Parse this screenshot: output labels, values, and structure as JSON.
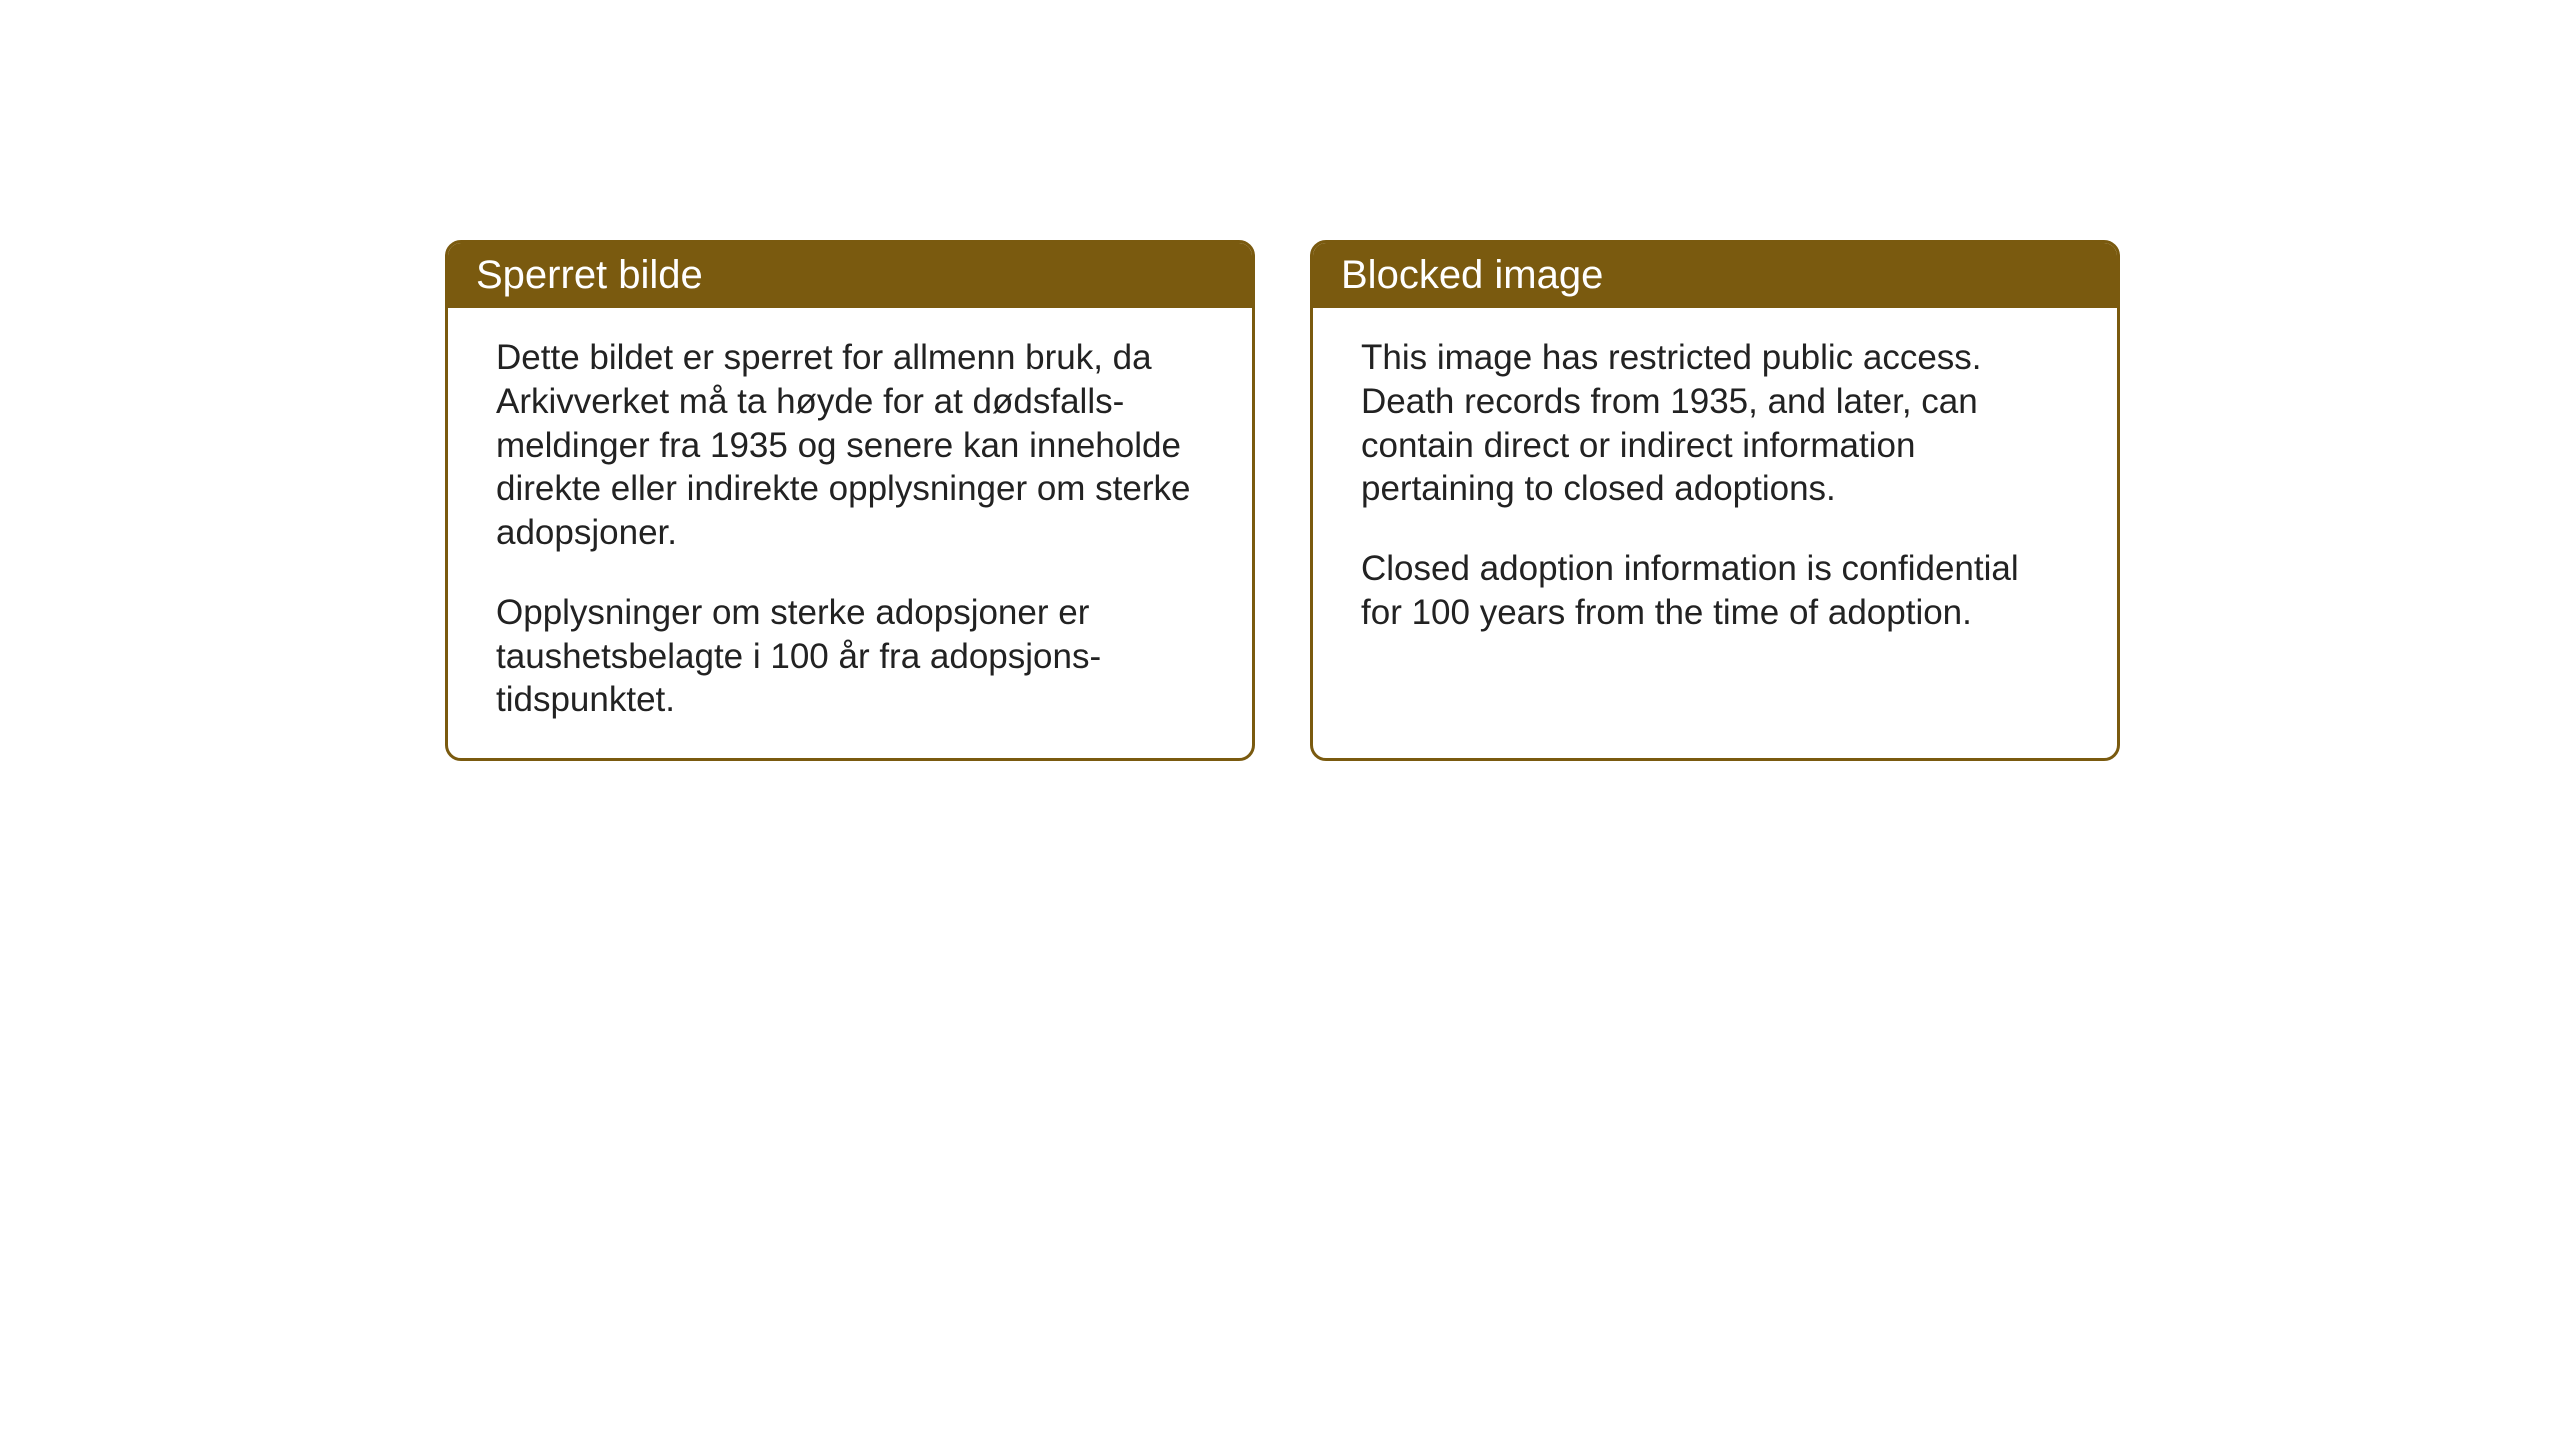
{
  "layout": {
    "background_color": "#ffffff",
    "card_border_color": "#7a5a0f",
    "card_header_bg_color": "#7a5a0f",
    "card_header_text_color": "#ffffff",
    "body_text_color": "#222222",
    "header_fontsize": 40,
    "body_fontsize": 35,
    "card_border_radius": 16,
    "card_border_width": 3
  },
  "cards": {
    "norwegian": {
      "title": "Sperret bilde",
      "paragraph1": "Dette bildet er sperret for allmenn bruk, da Arkivverket må ta høyde for at dødsfalls-meldinger fra 1935 og senere kan inneholde direkte eller indirekte opplysninger om sterke adopsjoner.",
      "paragraph2": "Opplysninger om sterke adopsjoner er taushetsbelagte i 100 år fra adopsjons-tidspunktet."
    },
    "english": {
      "title": "Blocked image",
      "paragraph1": "This image has restricted public access. Death records from 1935, and later, can contain direct or indirect information pertaining to closed adoptions.",
      "paragraph2": "Closed adoption information is confidential for 100 years from the time of adoption."
    }
  }
}
